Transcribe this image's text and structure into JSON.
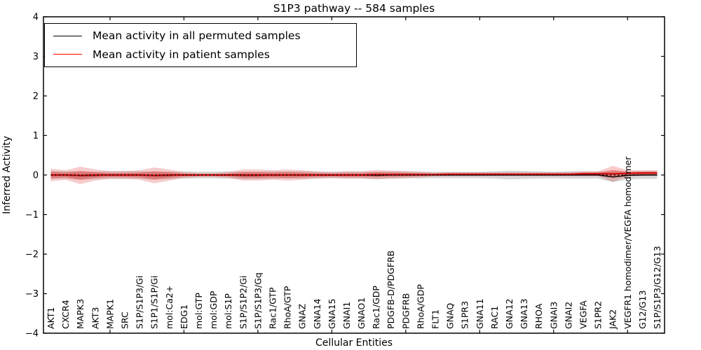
{
  "chart_data": {
    "type": "line",
    "title": "S1P3 pathway -- 584 samples",
    "xlabel": "Cellular Entities",
    "ylabel": "Inferred Activity",
    "ylim": [
      -4,
      4
    ],
    "ytick_values": [
      -4,
      -3,
      -2,
      -1,
      0,
      1,
      2,
      3,
      4
    ],
    "ytick_labels": [
      "−4",
      "−3",
      "−2",
      "−1",
      "0",
      "1",
      "2",
      "3",
      "4"
    ],
    "xtick_major_positions": [
      5,
      10,
      15,
      20,
      25,
      30,
      35,
      40
    ],
    "grid": false,
    "legend_position": "upper-left",
    "zero_line": {
      "value": 0,
      "style": "dotted",
      "color": "#000000"
    },
    "entities": [
      "AKT1",
      "CXCR4",
      "MAPK3",
      "AKT3",
      "MAPK1",
      "SRC",
      "S1P/S1P3/Gi",
      "S1P1/S1P/Gi",
      "mol:Ca2+",
      "EDG1",
      "mol:GTP",
      "mol:GDP",
      "mol:S1P",
      "S1P/S1P2/Gi",
      "S1P/S1P3/Gq",
      "Rac1/GTP",
      "RhoA/GTP",
      "GNAZ",
      "GNA14",
      "GNA15",
      "GNAI1",
      "GNAO1",
      "Rac1/GDP",
      "PDGFB-D/PDGFRB",
      "PDGFRB",
      "RhoA/GDP",
      "FLT1",
      "GNAQ",
      "S1PR3",
      "GNA11",
      "RAC1",
      "GNA12",
      "GNA13",
      "RHOA",
      "GNAI3",
      "GNAI2",
      "VEGFA",
      "S1PR2",
      "JAK2",
      "VEGFR1 homodimer/VEGFA homodimer",
      "G12/G13",
      "S1P/S1P3/G12/G13"
    ],
    "series": [
      {
        "name": "Mean activity in all permuted samples",
        "color": "#000000",
        "band_color": "rgba(128,128,128,0.32)",
        "mean": [
          0,
          0,
          -0.02,
          -0.01,
          0,
          0,
          0,
          -0.02,
          -0.01,
          0,
          0,
          0,
          0,
          -0.01,
          -0.01,
          0,
          0,
          0,
          0,
          0,
          0,
          0,
          -0.01,
          0,
          0,
          0,
          0,
          0,
          0,
          0,
          0,
          0,
          0,
          0,
          0,
          0,
          0,
          0,
          -0.05,
          -0.01,
          0,
          0
        ],
        "std": [
          0.1,
          0.095,
          0.1,
          0.095,
          0.09,
          0.09,
          0.095,
          0.1,
          0.095,
          0.09,
          0.085,
          0.085,
          0.09,
          0.095,
          0.095,
          0.09,
          0.09,
          0.09,
          0.085,
          0.085,
          0.085,
          0.085,
          0.09,
          0.09,
          0.085,
          0.085,
          0.08,
          0.08,
          0.08,
          0.08,
          0.09,
          0.11,
          0.1,
          0.09,
          0.085,
          0.09,
          0.095,
          0.09,
          0.13,
          0.1,
          0.095,
          0.1
        ]
      },
      {
        "name": "Mean activity in patient samples",
        "color": "#d40000",
        "band_color": "rgba(222,45,45,0.42)",
        "band_color_outer": "rgba(230,70,70,0.28)",
        "mean": [
          0,
          0,
          -0.01,
          0,
          0,
          0,
          0,
          -0.01,
          0,
          0,
          0,
          0,
          0,
          0,
          0,
          0,
          0,
          0,
          0,
          0,
          0,
          0,
          0.01,
          0.01,
          0.01,
          0.01,
          0.01,
          0.02,
          0.02,
          0.02,
          0.02,
          0.02,
          0.02,
          0.02,
          0.02,
          0.02,
          0.03,
          0.03,
          0.03,
          0.04,
          0.05,
          0.05
        ],
        "std": [
          0.08,
          0.06,
          0.11,
          0.07,
          0.05,
          0.05,
          0.06,
          0.1,
          0.07,
          0.035,
          0.025,
          0.025,
          0.035,
          0.07,
          0.07,
          0.06,
          0.07,
          0.06,
          0.045,
          0.035,
          0.045,
          0.045,
          0.06,
          0.05,
          0.045,
          0.035,
          0.025,
          0.025,
          0.025,
          0.025,
          0.025,
          0.025,
          0.025,
          0.025,
          0.025,
          0.025,
          0.03,
          0.03,
          0.1,
          0.04,
          0.035,
          0.035
        ]
      }
    ]
  }
}
